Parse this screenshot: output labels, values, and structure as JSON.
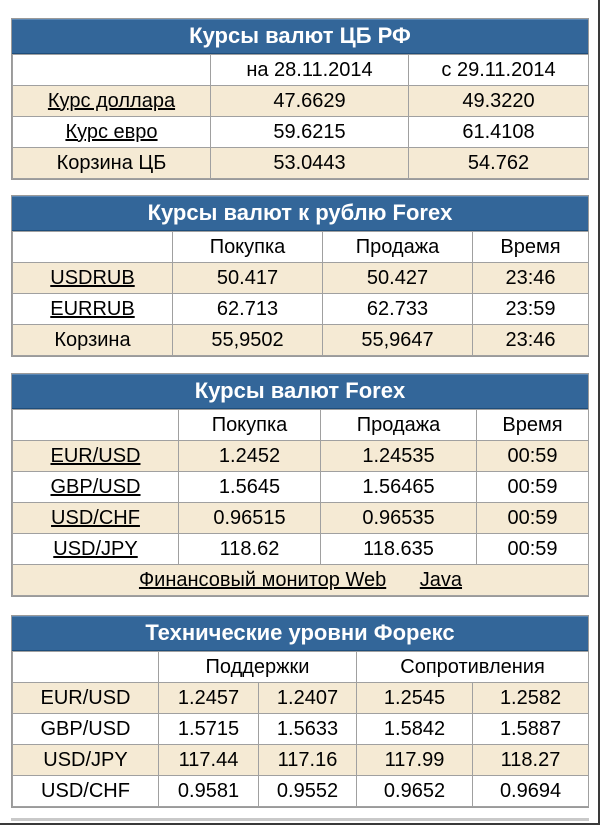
{
  "cbr": {
    "title": "Курсы валют ЦБ РФ",
    "col1": "на 28.11.2014",
    "col2": "с 29.11.2014",
    "rows": [
      {
        "label": "Курс доллара",
        "a": "47.6629",
        "b": "49.3220"
      },
      {
        "label": "Курс евро",
        "a": "59.6215",
        "b": "61.4108"
      },
      {
        "label": "Корзина ЦБ",
        "a": "53.0443",
        "b": "54.762"
      }
    ]
  },
  "rub_forex": {
    "title": "Курсы валют к рублю Forex",
    "buy": "Покупка",
    "sell": "Продажа",
    "time": "Время",
    "rows": [
      {
        "label": "USDRUB",
        "buy": "50.417",
        "sell": "50.427",
        "time": "23:46"
      },
      {
        "label": "EURRUB",
        "buy": "62.713",
        "sell": "62.733",
        "time": "23:59"
      },
      {
        "label": "Корзина",
        "buy": "55,9502",
        "sell": "55,9647",
        "time": "23:46"
      }
    ]
  },
  "forex": {
    "title": "Курсы валют Forex",
    "buy": "Покупка",
    "sell": "Продажа",
    "time": "Время",
    "rows": [
      {
        "label": "EUR/USD",
        "buy": "1.2452",
        "sell": "1.24535",
        "time": "00:59"
      },
      {
        "label": "GBP/USD",
        "buy": "1.5645",
        "sell": "1.56465",
        "time": "00:59"
      },
      {
        "label": "USD/CHF",
        "buy": "0.96515",
        "sell": "0.96535",
        "time": "00:59"
      },
      {
        "label": "USD/JPY",
        "buy": "118.62",
        "sell": "118.635",
        "time": "00:59"
      }
    ],
    "footer_link_web": "Финансовый монитор Web",
    "footer_link_java": "Java"
  },
  "levels": {
    "title": "Технические уровни Форекс",
    "support": "Поддержки",
    "resistance": "Сопротивления",
    "rows": [
      {
        "label": "EUR/USD",
        "s1": "1.2457",
        "s2": "1.2407",
        "r1": "1.2545",
        "r2": "1.2582"
      },
      {
        "label": "GBP/USD",
        "s1": "1.5715",
        "s2": "1.5633",
        "r1": "1.5842",
        "r2": "1.5887"
      },
      {
        "label": "USD/JPY",
        "s1": "117.44",
        "s2": "117.16",
        "r1": "117.99",
        "r2": "118.27"
      },
      {
        "label": "USD/CHF",
        "s1": "0.9581",
        "s2": "0.9552",
        "r1": "0.9652",
        "r2": "0.9694"
      }
    ]
  }
}
